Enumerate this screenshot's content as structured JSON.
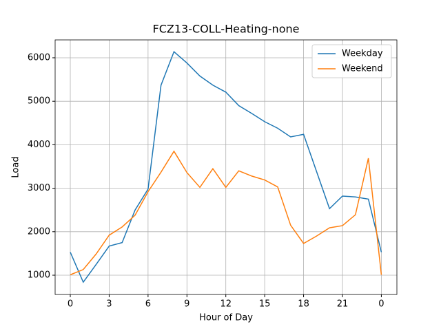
{
  "chart_data": {
    "type": "line",
    "title": "FCZ13-COLL-Heating-none",
    "x_label": "Hour of Day",
    "y_label": "Load",
    "x": [
      0,
      1,
      2,
      3,
      4,
      5,
      6,
      7,
      8,
      9,
      10,
      11,
      12,
      13,
      14,
      15,
      16,
      17,
      18,
      19,
      20,
      21,
      22,
      23,
      24
    ],
    "series": [
      {
        "name": "Weekday",
        "color": "#1f77b4",
        "values": [
          1530,
          840,
          1250,
          1670,
          1750,
          2500,
          2980,
          5370,
          6140,
          5880,
          5580,
          5370,
          5210,
          4900,
          4720,
          4530,
          4380,
          4180,
          4240,
          3385,
          2530,
          2820,
          2800,
          2750,
          1530
        ]
      },
      {
        "name": "Weekend",
        "color": "#ff7f0e",
        "values": [
          1010,
          1130,
          1490,
          1920,
          2110,
          2380,
          2920,
          3370,
          3850,
          3360,
          3020,
          3450,
          3020,
          3400,
          3280,
          3190,
          3030,
          2150,
          1730,
          1900,
          2090,
          2140,
          2390,
          3690,
          1010
        ]
      }
    ],
    "xlim": [
      -1.17,
      25.2
    ],
    "ylim": [
      557,
      6411
    ],
    "xticks": [
      0,
      3,
      6,
      9,
      12,
      15,
      18,
      21,
      {
        "value": 24,
        "label": "0"
      }
    ],
    "yticks": [
      1000,
      2000,
      3000,
      4000,
      5000,
      6000
    ],
    "grid": true,
    "legend": "upper right"
  }
}
